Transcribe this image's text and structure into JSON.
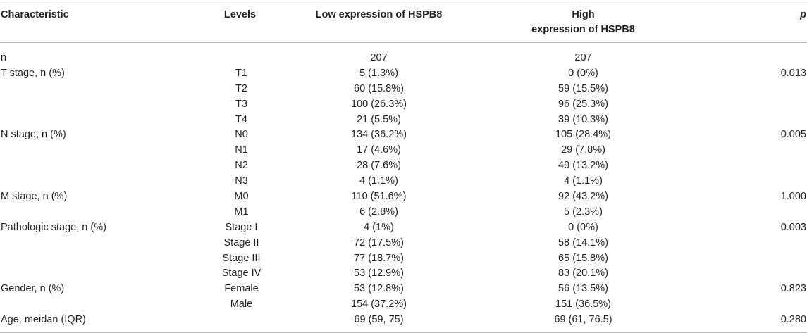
{
  "headers": {
    "characteristic": "Characteristic",
    "levels": "Levels",
    "low": "Low expression of HSPB8",
    "high_line1": "High",
    "high_line2": "expression of HSPB8",
    "p": "p"
  },
  "rows": [
    {
      "characteristic": "n",
      "level": "",
      "low": "207",
      "high": "207",
      "p": ""
    },
    {
      "characteristic": "T stage, n (%)",
      "level": "T1",
      "low": "5 (1.3%)",
      "high": "0 (0%)",
      "p": "0.013"
    },
    {
      "characteristic": "",
      "level": "T2",
      "low": "60 (15.8%)",
      "high": "59 (15.5%)",
      "p": ""
    },
    {
      "characteristic": "",
      "level": "T3",
      "low": "100 (26.3%)",
      "high": "96 (25.3%)",
      "p": ""
    },
    {
      "characteristic": "",
      "level": "T4",
      "low": "21 (5.5%)",
      "high": "39 (10.3%)",
      "p": ""
    },
    {
      "characteristic": "N stage, n (%)",
      "level": "N0",
      "low": "134 (36.2%)",
      "high": "105 (28.4%)",
      "p": "0.005"
    },
    {
      "characteristic": "",
      "level": "N1",
      "low": "17 (4.6%)",
      "high": "29 (7.8%)",
      "p": ""
    },
    {
      "characteristic": "",
      "level": "N2",
      "low": "28 (7.6%)",
      "high": "49 (13.2%)",
      "p": ""
    },
    {
      "characteristic": "",
      "level": "N3",
      "low": "4 (1.1%)",
      "high": "4 (1.1%)",
      "p": ""
    },
    {
      "characteristic": "M stage, n (%)",
      "level": "M0",
      "low": "110 (51.6%)",
      "high": "92 (43.2%)",
      "p": "1.000"
    },
    {
      "characteristic": "",
      "level": "M1",
      "low": "6 (2.8%)",
      "high": "5 (2.3%)",
      "p": ""
    },
    {
      "characteristic": "Pathologic stage, n (%)",
      "level": "Stage I",
      "low": "4 (1%)",
      "high": "0 (0%)",
      "p": "0.003"
    },
    {
      "characteristic": "",
      "level": "Stage II",
      "low": "72 (17.5%)",
      "high": "58 (14.1%)",
      "p": ""
    },
    {
      "characteristic": "",
      "level": "Stage III",
      "low": "77 (18.7%)",
      "high": "65 (15.8%)",
      "p": ""
    },
    {
      "characteristic": "",
      "level": "Stage IV",
      "low": "53 (12.9%)",
      "high": "83 (20.1%)",
      "p": ""
    },
    {
      "characteristic": "Gender, n (%)",
      "level": "Female",
      "low": "53 (12.8%)",
      "high": "56 (13.5%)",
      "p": "0.823"
    },
    {
      "characteristic": "",
      "level": "Male",
      "low": "154 (37.2%)",
      "high": "151 (36.5%)",
      "p": ""
    },
    {
      "characteristic": "Age, meidan (IQR)",
      "level": "",
      "low": "69 (59, 75)",
      "high": "69 (61, 76.5)",
      "p": "0.280"
    }
  ]
}
